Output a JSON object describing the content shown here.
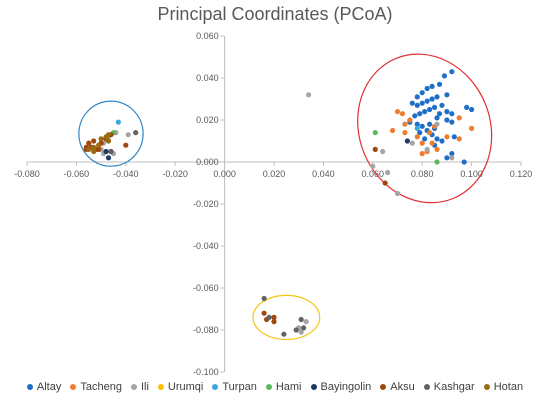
{
  "chart_data": {
    "type": "scatter",
    "title": "Principal Coordinates (PCoA)",
    "xlim": [
      -0.08,
      0.12
    ],
    "ylim": [
      -0.1,
      0.06
    ],
    "x_ticks": [
      -0.08,
      -0.06,
      -0.04,
      -0.02,
      0.0,
      0.02,
      0.04,
      0.06,
      0.08,
      0.1,
      0.12
    ],
    "x_tick_labels": [
      "-0.080",
      "-0.060",
      "-0.040",
      "-0.020",
      "0.000",
      "0.020",
      "0.040",
      "0.060",
      "0.080",
      "0.100",
      "0.120"
    ],
    "y_ticks": [
      0.06,
      0.04,
      0.02,
      0.0,
      -0.02,
      -0.04,
      -0.06,
      -0.08,
      -0.1
    ],
    "y_tick_labels": [
      "0.060",
      "0.040",
      "0.020",
      "0.000",
      "-0.020",
      "-0.040",
      "-0.060",
      "-0.080",
      "-0.100"
    ],
    "grid": false,
    "legend_position": "bottom",
    "series": [
      {
        "name": "Altay",
        "color": "#1f6fc9",
        "points": [
          [
            0.092,
            0.043
          ],
          [
            0.089,
            0.041
          ],
          [
            0.087,
            0.037
          ],
          [
            0.084,
            0.036
          ],
          [
            0.082,
            0.035
          ],
          [
            0.08,
            0.033
          ],
          [
            0.078,
            0.031
          ],
          [
            0.09,
            0.032
          ],
          [
            0.086,
            0.031
          ],
          [
            0.084,
            0.03
          ],
          [
            0.082,
            0.029
          ],
          [
            0.08,
            0.028
          ],
          [
            0.078,
            0.027
          ],
          [
            0.076,
            0.028
          ],
          [
            0.088,
            0.027
          ],
          [
            0.085,
            0.026
          ],
          [
            0.083,
            0.025
          ],
          [
            0.081,
            0.024
          ],
          [
            0.079,
            0.023
          ],
          [
            0.077,
            0.022
          ],
          [
            0.087,
            0.023
          ],
          [
            0.086,
            0.021
          ],
          [
            0.09,
            0.024
          ],
          [
            0.092,
            0.023
          ],
          [
            0.098,
            0.026
          ],
          [
            0.1,
            0.025
          ],
          [
            0.075,
            0.019
          ],
          [
            0.078,
            0.018
          ],
          [
            0.08,
            0.017
          ],
          [
            0.083,
            0.018
          ],
          [
            0.085,
            0.016
          ],
          [
            0.082,
            0.015
          ],
          [
            0.079,
            0.014
          ],
          [
            0.084,
            0.013
          ],
          [
            0.09,
            0.02
          ],
          [
            0.092,
            0.019
          ],
          [
            0.086,
            0.011
          ],
          [
            0.081,
            0.011
          ],
          [
            0.093,
            0.012
          ],
          [
            0.088,
            0.01
          ],
          [
            0.092,
            0.004
          ],
          [
            0.09,
            0.002
          ],
          [
            0.085,
            0.008
          ],
          [
            0.097,
            0.0
          ]
        ]
      },
      {
        "name": "Tacheng",
        "color": "#ed7d31",
        "points": [
          [
            0.095,
            0.021
          ],
          [
            0.07,
            0.024
          ],
          [
            0.072,
            0.023
          ],
          [
            0.075,
            0.02
          ],
          [
            0.073,
            0.018
          ],
          [
            0.068,
            0.015
          ],
          [
            0.073,
            0.014
          ],
          [
            0.078,
            0.012
          ],
          [
            0.083,
            0.014
          ],
          [
            0.085,
            0.017
          ],
          [
            0.09,
            0.012
          ],
          [
            0.095,
            0.011
          ],
          [
            0.1,
            0.016
          ],
          [
            0.084,
            0.009
          ],
          [
            0.08,
            0.009
          ],
          [
            0.086,
            0.006
          ],
          [
            0.082,
            0.005
          ],
          [
            0.08,
            0.004
          ]
        ]
      },
      {
        "name": "Ili",
        "color": "#a5a5a5",
        "points": [
          [
            0.034,
            0.032
          ],
          [
            0.07,
            -0.015
          ],
          [
            0.066,
            -0.005
          ],
          [
            0.06,
            -0.002
          ],
          [
            0.064,
            0.005
          ],
          [
            0.086,
            0.018
          ],
          [
            0.092,
            0.002
          ],
          [
            0.076,
            0.009
          ],
          [
            0.082,
            0.006
          ],
          [
            -0.047,
            0.012
          ],
          [
            -0.049,
            0.009
          ],
          [
            -0.044,
            0.014
          ],
          [
            -0.049,
            0.004
          ],
          [
            -0.05,
            0.006
          ],
          [
            -0.039,
            0.013
          ],
          [
            -0.045,
            0.004
          ],
          [
            0.03,
            -0.079
          ],
          [
            0.031,
            -0.081
          ],
          [
            0.033,
            -0.076
          ],
          [
            0.029,
            -0.08
          ]
        ]
      },
      {
        "name": "Urumqi",
        "color": "#ffc000",
        "points": []
      },
      {
        "name": "Turpan",
        "color": "#3da8e0",
        "points": [
          [
            -0.043,
            0.019
          ],
          [
            0.078,
            0.016
          ]
        ]
      },
      {
        "name": "Hami",
        "color": "#5cb85c",
        "points": [
          [
            0.061,
            0.014
          ],
          [
            0.086,
            0.0
          ],
          [
            -0.045,
            0.014
          ]
        ]
      },
      {
        "name": "Bayingolin",
        "color": "#1f3864",
        "points": [
          [
            -0.047,
            0.002
          ],
          [
            -0.048,
            0.005
          ],
          [
            -0.046,
            0.005
          ],
          [
            0.074,
            0.01
          ]
        ]
      },
      {
        "name": "Aksu",
        "color": "#9e480e",
        "points": [
          [
            0.065,
            -0.01
          ],
          [
            0.061,
            0.006
          ],
          [
            -0.046,
            0.013
          ],
          [
            -0.048,
            0.011
          ],
          [
            -0.05,
            0.009
          ],
          [
            -0.053,
            0.01
          ],
          [
            -0.055,
            0.009
          ],
          [
            -0.056,
            0.007
          ],
          [
            -0.054,
            0.007
          ],
          [
            -0.052,
            0.006
          ],
          [
            -0.051,
            0.006
          ],
          [
            -0.056,
            0.006
          ],
          [
            -0.04,
            0.008
          ],
          [
            0.016,
            -0.072
          ],
          [
            0.017,
            -0.075
          ],
          [
            0.02,
            -0.074
          ],
          [
            0.02,
            -0.076
          ]
        ]
      },
      {
        "name": "Kashgar",
        "color": "#636363",
        "points": [
          [
            -0.036,
            0.014
          ],
          [
            -0.046,
            0.005
          ],
          [
            0.016,
            -0.065
          ],
          [
            0.018,
            -0.074
          ],
          [
            0.024,
            -0.082
          ],
          [
            0.029,
            -0.08
          ],
          [
            0.032,
            -0.079
          ],
          [
            0.031,
            -0.075
          ]
        ]
      },
      {
        "name": "Hotan",
        "color": "#9b6a12",
        "points": [
          [
            -0.048,
            0.012
          ],
          [
            -0.047,
            0.013
          ],
          [
            -0.051,
            0.008
          ],
          [
            -0.053,
            0.007
          ],
          [
            -0.055,
            0.006
          ],
          [
            -0.053,
            0.005
          ],
          [
            -0.047,
            0.01
          ],
          [
            -0.05,
            0.011
          ]
        ]
      }
    ],
    "ellipses": [
      {
        "color": "#2e86c1",
        "cx": -0.046,
        "cy": 0.0135,
        "rx": 0.013,
        "ry": 0.0155,
        "angle": 0
      },
      {
        "color": "#e03030",
        "cx": 0.081,
        "cy": 0.016,
        "rx": 0.0265,
        "ry": 0.036,
        "angle": -22
      },
      {
        "color": "#f5c518",
        "cx": 0.025,
        "cy": -0.074,
        "rx": 0.0135,
        "ry": 0.0105,
        "angle": 0
      }
    ]
  }
}
